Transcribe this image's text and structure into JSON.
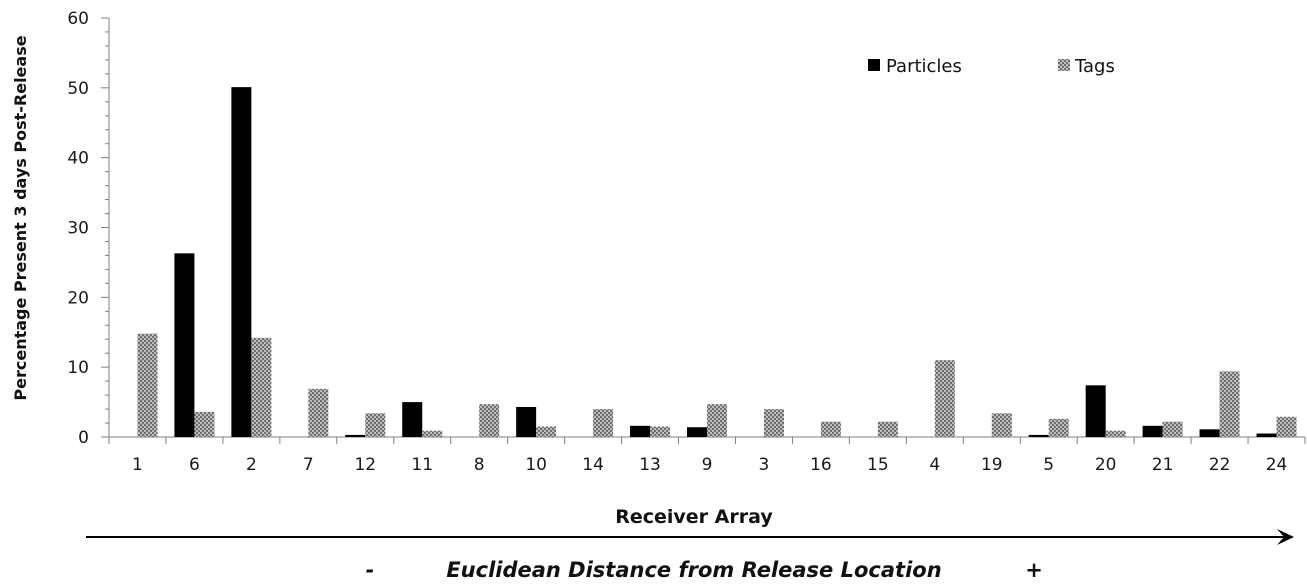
{
  "chart_data": {
    "type": "bar",
    "categories": [
      "1",
      "6",
      "2",
      "7",
      "12",
      "11",
      "8",
      "10",
      "14",
      "13",
      "9",
      "3",
      "16",
      "15",
      "4",
      "19",
      "5",
      "20",
      "21",
      "22",
      "24"
    ],
    "series": [
      {
        "name": "Particles",
        "color": "#000000",
        "pattern": "solid",
        "values": [
          0,
          26.3,
          50.1,
          0,
          0.3,
          5.0,
          0,
          4.3,
          0,
          1.6,
          1.4,
          0,
          0,
          0,
          0,
          0,
          0.3,
          7.4,
          1.6,
          1.1,
          0.5
        ]
      },
      {
        "name": "Tags",
        "color": "#8c8c8c",
        "pattern": "dotted",
        "values": [
          14.8,
          3.6,
          14.2,
          6.9,
          3.4,
          0.9,
          4.7,
          1.5,
          4.0,
          1.5,
          4.7,
          4.0,
          2.2,
          2.2,
          11.0,
          3.4,
          2.6,
          0.9,
          2.2,
          9.4,
          2.9
        ]
      }
    ],
    "ylabel": "Percentage Present 3 days Post-Release",
    "xlabel": "Receiver Array",
    "ylim": [
      0,
      60
    ],
    "yticks": [
      "0",
      "10",
      "20",
      "30",
      "40",
      "50",
      "60"
    ],
    "legend_position": "top-right",
    "grid": false,
    "annotation": {
      "minus": "-",
      "text": "Euclidean Distance from Release Location",
      "plus": "+"
    }
  }
}
